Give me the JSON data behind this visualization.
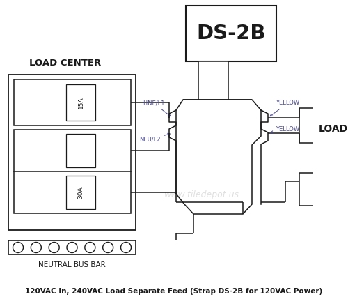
{
  "title": "120VAC In, 240VAC Load Separate Feed (Strap DS-2B for 120VAC Power)",
  "watermark": "www.tiledepot.us",
  "bg_color": "#ffffff",
  "line_color": "#1a1a1a",
  "label_color": "#4a4a8a",
  "watermark_color": "#cccccc",
  "ds2b_label": "DS-2B",
  "load_center_label": "LOAD CENTER",
  "neutral_bus_label": "NEUTRAL BUS BAR",
  "load_label": "LOAD",
  "line_l1_label": "LINE/L1",
  "neu_l2_label": "NEU/L2",
  "yellow1_label": "YELLOW",
  "yellow2_label": "YELLOW",
  "breaker1_label": "15A",
  "breaker2_label": "30A"
}
